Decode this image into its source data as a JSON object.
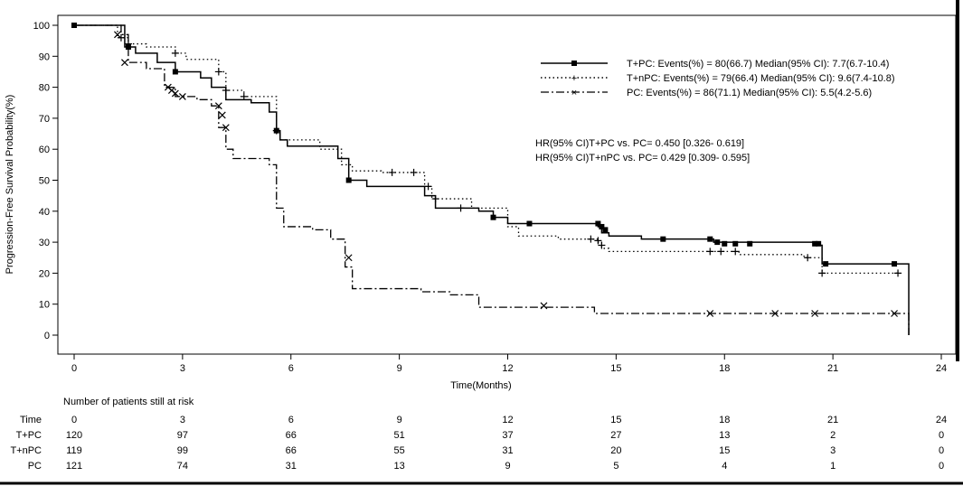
{
  "chart_data": {
    "type": "line",
    "title": "",
    "xlabel": "Time(Months)",
    "ylabel": "Progression-Free Survival Probability(%)",
    "xlim": [
      0,
      24
    ],
    "ylim": [
      0,
      100
    ],
    "x_ticks": [
      {
        "value": 0,
        "label": "0"
      },
      {
        "value": 3,
        "label": "3"
      },
      {
        "value": 6,
        "label": "6"
      },
      {
        "value": 9,
        "label": "9"
      },
      {
        "value": 12,
        "label": "12"
      },
      {
        "value": 15,
        "label": "15"
      },
      {
        "value": 18,
        "label": "18"
      },
      {
        "value": 21,
        "label": "21"
      },
      {
        "value": 24,
        "label": "24"
      }
    ],
    "y_ticks": [
      0,
      10,
      20,
      30,
      40,
      50,
      60,
      70,
      80,
      90,
      100
    ],
    "grid": false,
    "legend_position": "top-right",
    "series": [
      {
        "name": "T+PC: Events(%) = 80(66.7) Median(95% CI): 7.7(6.7-10.4)",
        "style": "solid",
        "marker": "square",
        "color": "#000000",
        "steps": [
          [
            0,
            100
          ],
          [
            1.3,
            100
          ],
          [
            1.4,
            93
          ],
          [
            1.7,
            91
          ],
          [
            2.3,
            88
          ],
          [
            2.8,
            85
          ],
          [
            3.5,
            83
          ],
          [
            3.8,
            80
          ],
          [
            4.2,
            76
          ],
          [
            4.9,
            75
          ],
          [
            5.4,
            72
          ],
          [
            5.6,
            66
          ],
          [
            5.7,
            63
          ],
          [
            5.9,
            61
          ],
          [
            7.3,
            57
          ],
          [
            7.6,
            50
          ],
          [
            8.1,
            48
          ],
          [
            9.7,
            45
          ],
          [
            10.0,
            41
          ],
          [
            11.2,
            40
          ],
          [
            11.6,
            38
          ],
          [
            12.0,
            36
          ],
          [
            14.5,
            35
          ],
          [
            14.6,
            33
          ],
          [
            14.8,
            32
          ],
          [
            15.7,
            31
          ],
          [
            17.7,
            30
          ],
          [
            20.6,
            29
          ],
          [
            20.7,
            23
          ],
          [
            23.1,
            23
          ],
          [
            23.1,
            0
          ]
        ],
        "censor": [
          [
            0,
            100
          ],
          [
            1.5,
            93
          ],
          [
            2.8,
            85
          ],
          [
            5.6,
            66
          ],
          [
            7.6,
            50
          ],
          [
            11.6,
            38
          ],
          [
            12.6,
            36
          ],
          [
            14.5,
            36
          ],
          [
            14.6,
            35
          ],
          [
            14.7,
            34
          ],
          [
            16.3,
            31
          ],
          [
            17.6,
            31
          ],
          [
            17.8,
            30
          ],
          [
            18.0,
            29.5
          ],
          [
            18.3,
            29.5
          ],
          [
            18.7,
            29.5
          ],
          [
            20.5,
            29.5
          ],
          [
            20.6,
            29.5
          ],
          [
            20.8,
            23
          ],
          [
            22.7,
            23
          ]
        ]
      },
      {
        "name": "T+nPC: Events(%) = 79(66.4) Median(95% CI): 9.6(7.4-10.8)",
        "style": "dotted",
        "marker": "plus",
        "color": "#000000",
        "steps": [
          [
            0,
            100
          ],
          [
            1.2,
            96
          ],
          [
            1.5,
            94
          ],
          [
            2.0,
            93
          ],
          [
            2.8,
            91
          ],
          [
            3.1,
            89
          ],
          [
            4.0,
            85
          ],
          [
            4.2,
            79
          ],
          [
            4.7,
            77
          ],
          [
            5.6,
            66
          ],
          [
            5.7,
            63
          ],
          [
            6.8,
            60
          ],
          [
            7.4,
            55
          ],
          [
            7.7,
            53
          ],
          [
            8.5,
            52.5
          ],
          [
            9.7,
            48
          ],
          [
            9.9,
            44
          ],
          [
            11.0,
            41
          ],
          [
            12.0,
            35
          ],
          [
            12.3,
            32
          ],
          [
            13.4,
            31
          ],
          [
            14.5,
            30
          ],
          [
            14.6,
            28
          ],
          [
            14.8,
            27
          ],
          [
            18.4,
            26
          ],
          [
            20.2,
            25
          ],
          [
            20.7,
            20
          ],
          [
            22.8,
            20
          ]
        ],
        "censor": [
          [
            1.3,
            96
          ],
          [
            1.5,
            94
          ],
          [
            2.8,
            91
          ],
          [
            4.0,
            85
          ],
          [
            4.2,
            79
          ],
          [
            4.7,
            77
          ],
          [
            5.6,
            66
          ],
          [
            8.8,
            52.5
          ],
          [
            9.4,
            52.5
          ],
          [
            9.8,
            48
          ],
          [
            10.0,
            44
          ],
          [
            10.7,
            41
          ],
          [
            14.3,
            31
          ],
          [
            14.5,
            30.5
          ],
          [
            14.6,
            29
          ],
          [
            17.6,
            27
          ],
          [
            17.9,
            27
          ],
          [
            18.3,
            27
          ],
          [
            20.3,
            25
          ],
          [
            20.7,
            20
          ],
          [
            22.8,
            20
          ]
        ]
      },
      {
        "name": "PC: Events(%) = 86(71.1) Median(95% CI): 5.5(4.2-5.6)",
        "style": "dashdot",
        "marker": "x",
        "color": "#000000",
        "steps": [
          [
            0,
            100
          ],
          [
            1.3,
            97
          ],
          [
            1.5,
            88
          ],
          [
            2.0,
            86
          ],
          [
            2.5,
            80
          ],
          [
            2.8,
            77
          ],
          [
            3.4,
            76
          ],
          [
            3.8,
            74
          ],
          [
            4.0,
            67
          ],
          [
            4.2,
            60
          ],
          [
            4.4,
            57
          ],
          [
            5.4,
            55
          ],
          [
            5.6,
            41
          ],
          [
            5.8,
            35
          ],
          [
            6.6,
            34
          ],
          [
            7.1,
            31
          ],
          [
            7.5,
            22
          ],
          [
            7.7,
            15
          ],
          [
            9.6,
            14
          ],
          [
            10.4,
            13
          ],
          [
            11.2,
            9
          ],
          [
            14.4,
            7
          ],
          [
            23.1,
            7
          ],
          [
            23.1,
            0
          ]
        ],
        "censor": [
          [
            1.2,
            97
          ],
          [
            1.4,
            88
          ],
          [
            2.6,
            80
          ],
          [
            2.7,
            79
          ],
          [
            2.8,
            78
          ],
          [
            3.0,
            77
          ],
          [
            4.0,
            74
          ],
          [
            4.1,
            71
          ],
          [
            4.2,
            67
          ],
          [
            7.6,
            25
          ],
          [
            13.0,
            9.5
          ],
          [
            17.6,
            7
          ],
          [
            19.4,
            7
          ],
          [
            20.5,
            7
          ],
          [
            22.7,
            7
          ]
        ]
      }
    ],
    "hr_text": [
      "HR(95% CI)T+PC vs. PC= 0.450 [0.326- 0.619]",
      "HR(95% CI)T+nPC vs. PC= 0.429 [0.309- 0.595]"
    ],
    "risk_table": {
      "title": "Number of patients still at risk",
      "time_label": "Time",
      "times": [
        "0",
        "3",
        "6",
        "9",
        "12",
        "15",
        "18",
        "21",
        "24"
      ],
      "rows": [
        {
          "label": "T+PC",
          "values": [
            "120",
            "97",
            "66",
            "51",
            "37",
            "27",
            "13",
            "2",
            "0"
          ]
        },
        {
          "label": "T+nPC",
          "values": [
            "119",
            "99",
            "66",
            "55",
            "31",
            "20",
            "15",
            "3",
            "0"
          ]
        },
        {
          "label": "PC",
          "values": [
            "121",
            "74",
            "31",
            "13",
            "9",
            "5",
            "4",
            "1",
            "0"
          ]
        }
      ]
    }
  }
}
